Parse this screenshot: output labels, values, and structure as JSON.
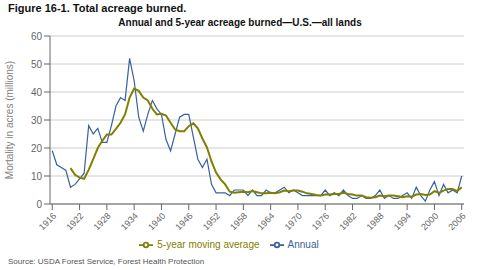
{
  "chart_data": {
    "type": "line",
    "title": "Figure 16-1. Total acreage burned.",
    "subtitle": "Annual and 5-year acreage burned—U.S.—all lands",
    "annotations": [
      "Source: USDA Forest Service, Forest Health Protection"
    ],
    "ylabel": "Mortality in acres (millions)",
    "x": [
      1916,
      1917,
      1918,
      1919,
      1920,
      1921,
      1922,
      1923,
      1924,
      1925,
      1926,
      1927,
      1928,
      1929,
      1930,
      1931,
      1932,
      1933,
      1934,
      1935,
      1936,
      1937,
      1938,
      1939,
      1940,
      1941,
      1942,
      1943,
      1944,
      1945,
      1946,
      1947,
      1948,
      1949,
      1950,
      1951,
      1952,
      1953,
      1954,
      1955,
      1956,
      1957,
      1958,
      1959,
      1960,
      1961,
      1962,
      1963,
      1964,
      1965,
      1966,
      1967,
      1968,
      1969,
      1970,
      1971,
      1972,
      1973,
      1974,
      1975,
      1976,
      1977,
      1978,
      1979,
      1980,
      1981,
      1982,
      1983,
      1984,
      1985,
      1986,
      1987,
      1988,
      1989,
      1990,
      1991,
      1992,
      1993,
      1994,
      1995,
      1996,
      1997,
      1998,
      1999,
      2000,
      2001,
      2002,
      2003,
      2004,
      2005,
      2006
    ],
    "series": [
      {
        "name": "Annual",
        "color": "#3a5fa0",
        "values": [
          19,
          14,
          13,
          12,
          6,
          7,
          9,
          11,
          28,
          25,
          27,
          22,
          22,
          28,
          35,
          38,
          37,
          52,
          44,
          31,
          26,
          32,
          37,
          34,
          32,
          23,
          19,
          25,
          31,
          32,
          32,
          24,
          16,
          13,
          16,
          7,
          4,
          4,
          4,
          3,
          5,
          5,
          5,
          3,
          5,
          3,
          3,
          5,
          4,
          4,
          5,
          6,
          4,
          5,
          4,
          3,
          3,
          3,
          3,
          3,
          5,
          3,
          4,
          3,
          5,
          3,
          2,
          2,
          3,
          2,
          2,
          3,
          5,
          2,
          3,
          2,
          2,
          3,
          4,
          2,
          6,
          3,
          1,
          5,
          8,
          3,
          7,
          4,
          5,
          4,
          10
        ]
      },
      {
        "name": "5-year moving average",
        "color": "#808000",
        "values": [
          null,
          null,
          null,
          null,
          12.8,
          10.4,
          9.4,
          9,
          12.2,
          16,
          20,
          22.6,
          24.8,
          24.8,
          26.8,
          29,
          32,
          38,
          41.2,
          40.4,
          38,
          37,
          34,
          32,
          32.2,
          31.6,
          29,
          26.6,
          26,
          26,
          27.8,
          28.8,
          27,
          23.4,
          20.2,
          15.2,
          11.2,
          8.8,
          7,
          4.4,
          4,
          4.2,
          4.4,
          4.2,
          4.6,
          4.2,
          3.8,
          3.8,
          4,
          3.8,
          4.2,
          4.8,
          4.6,
          4.8,
          4.8,
          4.4,
          3.8,
          3.6,
          3.2,
          3,
          3.4,
          3.4,
          3.6,
          3.6,
          4,
          3.6,
          3.4,
          3,
          3,
          2.4,
          2.2,
          2.4,
          3,
          2.8,
          3,
          3,
          2.8,
          2.4,
          2.8,
          2.6,
          3.4,
          3.6,
          3.2,
          3.4,
          4.6,
          4,
          4.8,
          5.4,
          5.4,
          4.6,
          6
        ]
      }
    ],
    "xlim": [
      1915.5,
      2006.5
    ],
    "xticks": [
      1916,
      1922,
      1928,
      1934,
      1940,
      1946,
      1952,
      1958,
      1964,
      1970,
      1976,
      1982,
      1988,
      1994,
      2000,
      2006
    ],
    "ylim": [
      0,
      60
    ],
    "yticks": [
      0,
      10,
      20,
      30,
      40,
      50,
      60
    ],
    "grid": true,
    "legend": "bottom"
  }
}
